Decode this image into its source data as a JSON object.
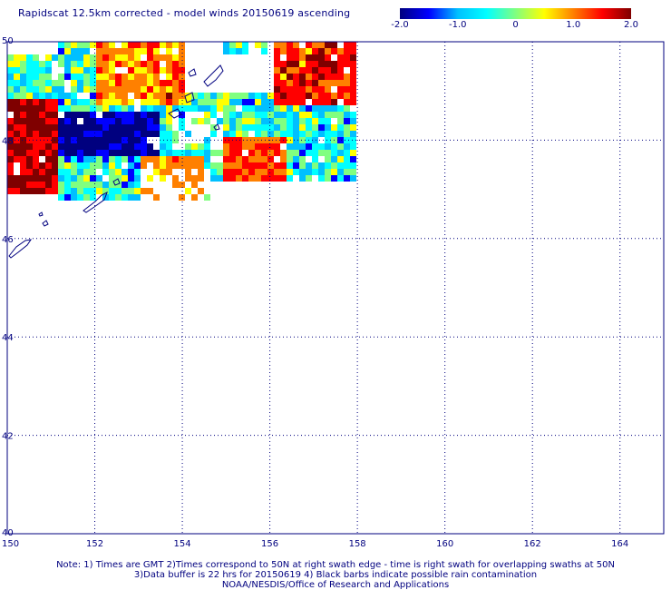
{
  "title": "Rapidscat 12.5km corrected - model winds 20150619 ascending",
  "colorbar": {
    "labels": [
      "-2.0",
      "-1.0",
      "0",
      "1.0",
      "2.0"
    ],
    "values": [
      -2.0,
      -1.0,
      0,
      1.0,
      2.0
    ],
    "colors": [
      "#00007f",
      "#0000ff",
      "#00c0ff",
      "#00ffff",
      "#80ff80",
      "#ffff00",
      "#ff8000",
      "#ff0000",
      "#7f0000"
    ]
  },
  "map": {
    "lon_ticks": [
      "150",
      "152",
      "154",
      "156",
      "158",
      "160",
      "162",
      "164"
    ],
    "lat_ticks": [
      "40",
      "42",
      "44",
      "46",
      "48",
      "50"
    ],
    "lon_range": [
      150,
      165
    ],
    "lat_range": [
      40,
      50
    ],
    "grid": "dotted",
    "frame_color": "#00007f"
  },
  "footer": {
    "line1": "Note: 1) Times are GMT 2)Times correspond to 50N at right swath edge - time is right swath for overlapping swaths at 50N",
    "line2": "3)Data buffer is 22 hrs for 20150619 4) Black barbs indicate possible rain contamination",
    "line3": "NOAA/NESDIS/Office of Research and Applications"
  }
}
